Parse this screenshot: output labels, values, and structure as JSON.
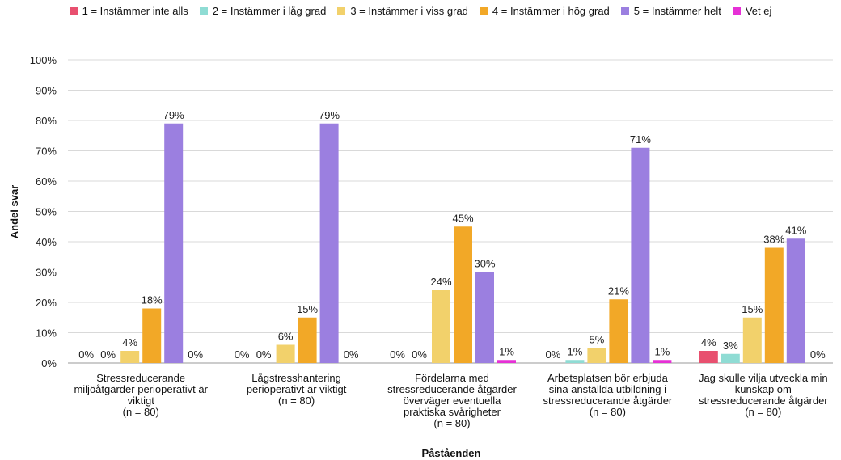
{
  "chart_data": {
    "type": "bar",
    "xlabel": "Påståenden",
    "ylabel": "Andel svar",
    "ylim": [
      0,
      100
    ],
    "yticks": [
      "0%",
      "10%",
      "20%",
      "30%",
      "40%",
      "50%",
      "60%",
      "70%",
      "80%",
      "90%",
      "100%"
    ],
    "grid": true,
    "legend_position": "top",
    "categories": [
      [
        "Stressreducerande",
        "miljöåtgärder perioperativt är",
        "viktigt",
        "(n = 80)"
      ],
      [
        "Lågstresshantering",
        "perioperativt är viktigt",
        "(n = 80)"
      ],
      [
        "Fördelarna med",
        "stressreducerande åtgärder",
        "överväger eventuella",
        "praktiska svårigheter",
        "(n = 80)"
      ],
      [
        "Arbetsplatsen bör erbjuda",
        "sina anställda utbildning i",
        "stressreducerande åtgärder",
        "(n = 80)"
      ],
      [
        "Jag skulle vilja utveckla min",
        "kunskap om",
        "stressreducerande åtgärder",
        "(n = 80)"
      ]
    ],
    "series": [
      {
        "name": "1 = Instämmer inte alls",
        "color": "#e8506f",
        "values": [
          0,
          0,
          0,
          0,
          4
        ]
      },
      {
        "name": "2 = Instämmer i låg grad",
        "color": "#8fdcd4",
        "values": [
          0,
          0,
          0,
          1,
          3
        ]
      },
      {
        "name": "3 = Instämmer i viss grad",
        "color": "#f2d16b",
        "values": [
          4,
          6,
          24,
          5,
          15
        ]
      },
      {
        "name": "4 = Instämmer i hög grad",
        "color": "#f2a827",
        "values": [
          18,
          15,
          45,
          21,
          38
        ]
      },
      {
        "name": "5 = Instämmer helt",
        "color": "#9b7fe0",
        "values": [
          79,
          79,
          30,
          71,
          41
        ]
      },
      {
        "name": "Vet ej",
        "color": "#e630d6",
        "values": [
          0,
          0,
          1,
          1,
          0
        ]
      }
    ]
  }
}
